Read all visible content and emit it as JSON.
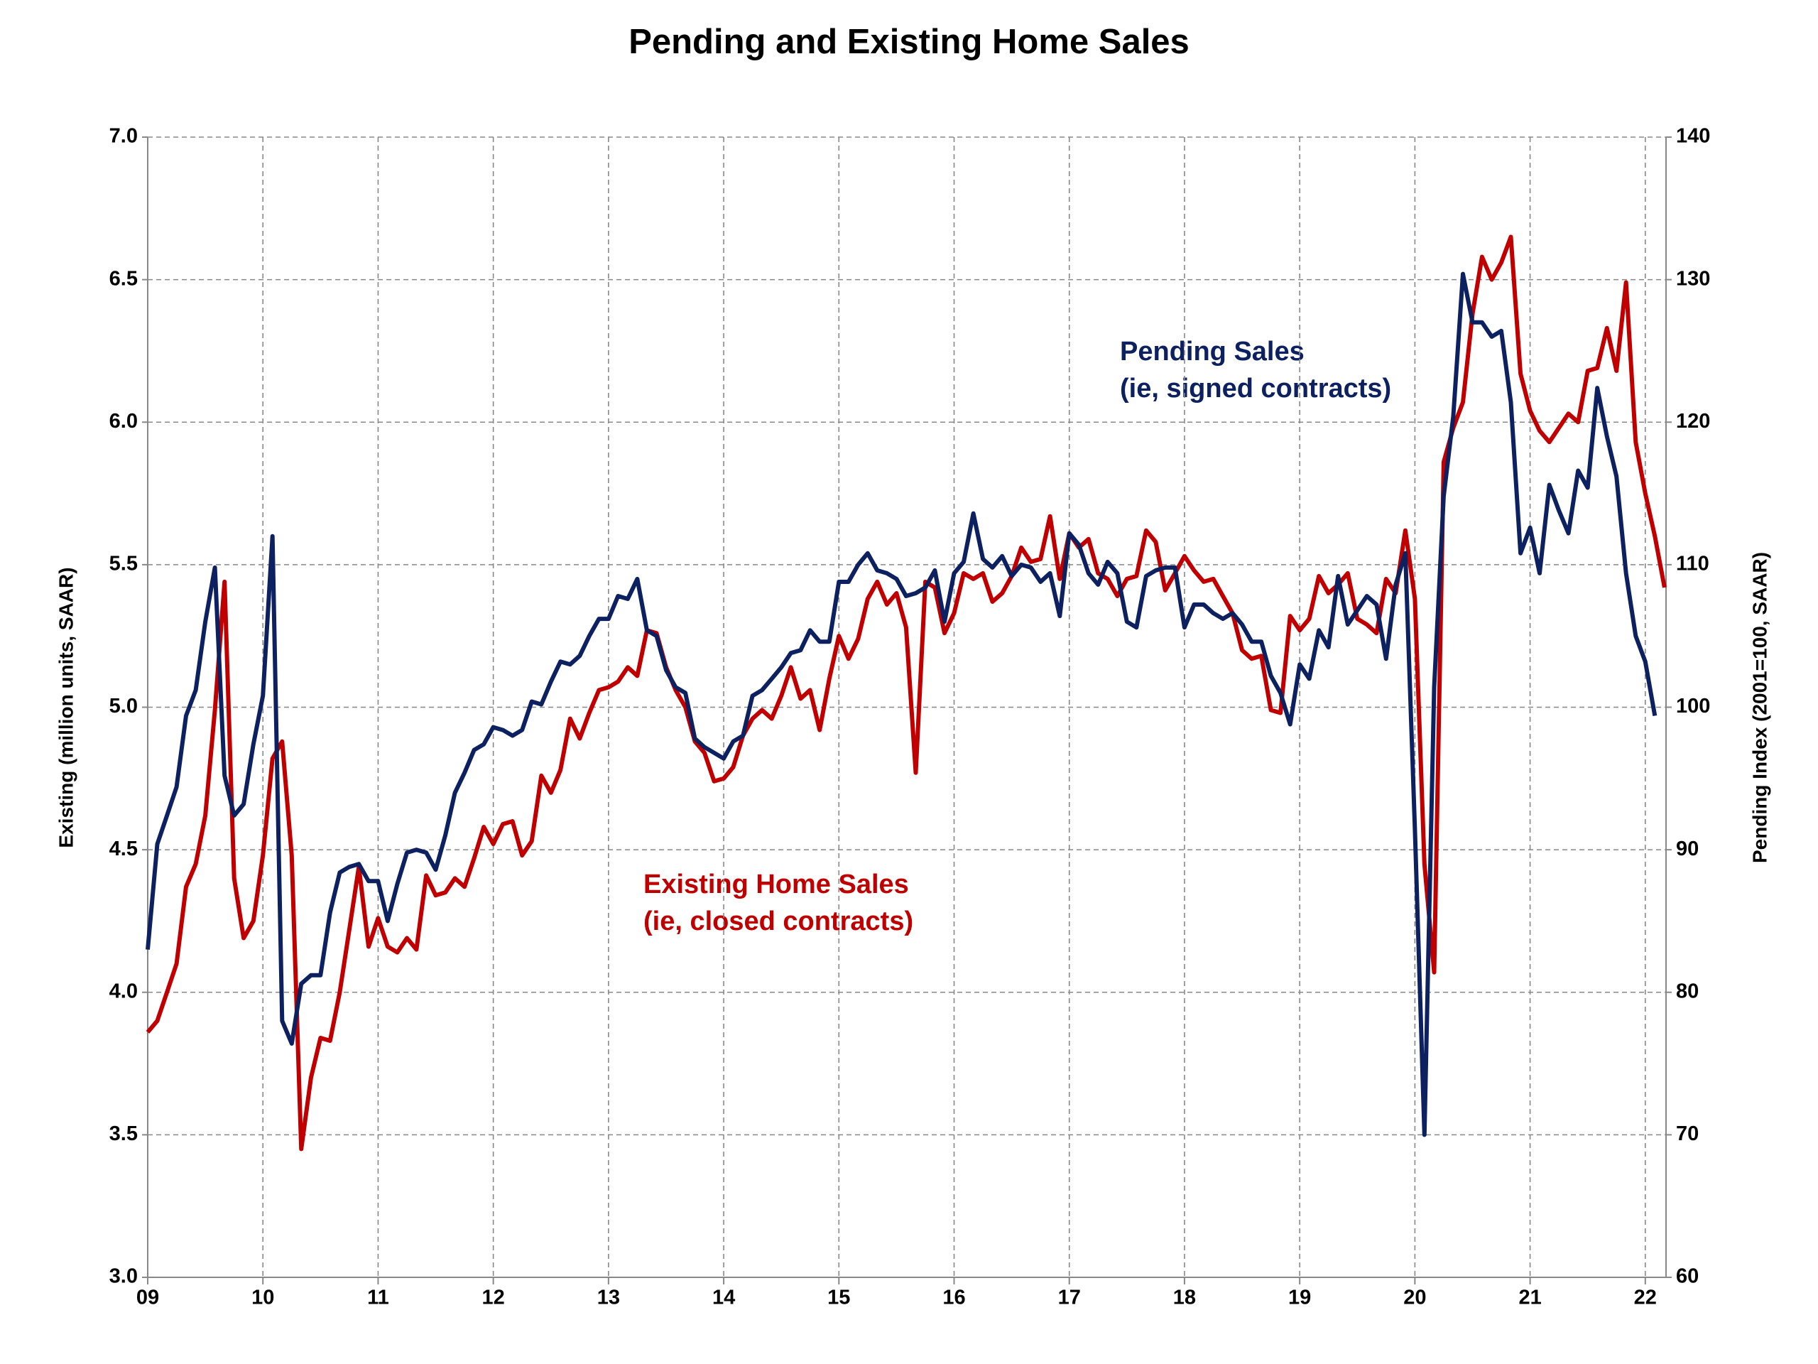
{
  "chart_data": {
    "type": "line",
    "title": "Pending and Existing Home Sales",
    "y_label": "Existing (million units, SAAR)",
    "y2_label": "Pending Index (2001=100, SAAR)",
    "annotations": [
      "Pending Sales",
      "(ie, signed contracts)",
      "Existing Home Sales",
      "(ie, closed contracts)"
    ],
    "grid": true,
    "x": [
      2009,
      2009.083,
      2009.167,
      2009.25,
      2009.333,
      2009.417,
      2009.5,
      2009.583,
      2009.667,
      2009.75,
      2009.833,
      2009.917,
      2010,
      2010.083,
      2010.167,
      2010.25,
      2010.333,
      2010.417,
      2010.5,
      2010.583,
      2010.667,
      2010.75,
      2010.833,
      2010.917,
      2011,
      2011.083,
      2011.167,
      2011.25,
      2011.333,
      2011.417,
      2011.5,
      2011.583,
      2011.667,
      2011.75,
      2011.833,
      2011.917,
      2012,
      2012.083,
      2012.167,
      2012.25,
      2012.333,
      2012.417,
      2012.5,
      2012.583,
      2012.667,
      2012.75,
      2012.833,
      2012.917,
      2013,
      2013.083,
      2013.167,
      2013.25,
      2013.333,
      2013.417,
      2013.5,
      2013.583,
      2013.667,
      2013.75,
      2013.833,
      2013.917,
      2014,
      2014.083,
      2014.167,
      2014.25,
      2014.333,
      2014.417,
      2014.5,
      2014.583,
      2014.667,
      2014.75,
      2014.833,
      2014.917,
      2015,
      2015.083,
      2015.167,
      2015.25,
      2015.333,
      2015.417,
      2015.5,
      2015.583,
      2015.667,
      2015.75,
      2015.833,
      2015.917,
      2016,
      2016.083,
      2016.167,
      2016.25,
      2016.333,
      2016.417,
      2016.5,
      2016.583,
      2016.667,
      2016.75,
      2016.833,
      2016.917,
      2017,
      2017.083,
      2017.167,
      2017.25,
      2017.333,
      2017.417,
      2017.5,
      2017.583,
      2017.667,
      2017.75,
      2017.833,
      2017.917,
      2018,
      2018.083,
      2018.167,
      2018.25,
      2018.333,
      2018.417,
      2018.5,
      2018.583,
      2018.667,
      2018.75,
      2018.833,
      2018.917,
      2019,
      2019.083,
      2019.167,
      2019.25,
      2019.333,
      2019.417,
      2019.5,
      2019.583,
      2019.667,
      2019.75,
      2019.833,
      2019.917,
      2020,
      2020.083,
      2020.167,
      2020.25,
      2020.333,
      2020.417,
      2020.5,
      2020.583,
      2020.667,
      2020.75,
      2020.833,
      2020.917,
      2021,
      2021.083,
      2021.167,
      2021.25,
      2021.333,
      2021.417,
      2021.5,
      2021.583,
      2021.667,
      2021.75,
      2021.833,
      2021.917,
      2022,
      2022.083,
      2022.167
    ],
    "series": [
      {
        "name": "Existing Home Sales",
        "color": "#c00000",
        "values": [
          3.86,
          3.9,
          4.0,
          4.1,
          4.37,
          4.45,
          4.62,
          4.99,
          5.44,
          4.4,
          4.19,
          4.25,
          4.48,
          4.82,
          4.88,
          4.48,
          3.45,
          3.7,
          3.84,
          3.83,
          4.0,
          4.22,
          4.44,
          4.16,
          4.26,
          4.16,
          4.14,
          4.19,
          4.15,
          4.41,
          4.34,
          4.35,
          4.4,
          4.37,
          4.47,
          4.58,
          4.52,
          4.59,
          4.6,
          4.48,
          4.53,
          4.76,
          4.7,
          4.78,
          4.96,
          4.89,
          4.98,
          5.06,
          5.07,
          5.09,
          5.14,
          5.11,
          5.27,
          5.26,
          5.14,
          5.06,
          5.0,
          4.88,
          4.84,
          4.74,
          4.75,
          4.79,
          4.9,
          4.96,
          4.99,
          4.96,
          5.04,
          5.14,
          5.03,
          5.06,
          4.92,
          5.1,
          5.25,
          5.17,
          5.24,
          5.38,
          5.44,
          5.36,
          5.4,
          5.28,
          4.77,
          5.44,
          5.42,
          5.26,
          5.33,
          5.47,
          5.45,
          5.47,
          5.37,
          5.4,
          5.46,
          5.56,
          5.51,
          5.52,
          5.67,
          5.45,
          5.61,
          5.56,
          5.59,
          5.47,
          5.45,
          5.39,
          5.45,
          5.46,
          5.62,
          5.58,
          5.41,
          5.47,
          5.53,
          5.48,
          5.44,
          5.45,
          5.39,
          5.33,
          5.2,
          5.17,
          5.18,
          4.99,
          4.98,
          5.32,
          5.27,
          5.31,
          5.46,
          5.4,
          5.43,
          5.47,
          5.31,
          5.29,
          5.26,
          5.45,
          5.4,
          5.62,
          5.38,
          4.45,
          4.07,
          5.86,
          5.98,
          6.07,
          6.38,
          6.58,
          6.5,
          6.56,
          6.65,
          6.17,
          6.04,
          5.97,
          5.93,
          5.98,
          6.03,
          6.0,
          6.18,
          6.19,
          6.33,
          6.18,
          6.49,
          5.93,
          5.75,
          5.6,
          5.42
        ]
      },
      {
        "name": "Pending Sales",
        "color": "#0d2160",
        "axis": "y2",
        "values": [
          83,
          90.4,
          92.4,
          94.4,
          99.4,
          101.2,
          106,
          109.8,
          95.2,
          92.4,
          93.2,
          97.4,
          100.8,
          112,
          78,
          76.4,
          80.6,
          81.2,
          81.2,
          85.6,
          88.4,
          88.8,
          89,
          87.8,
          87.8,
          85,
          87.6,
          89.8,
          90,
          89.8,
          88.6,
          91,
          94,
          95.4,
          97,
          97.4,
          98.6,
          98.4,
          98,
          98.4,
          100.4,
          100.2,
          101.8,
          103.2,
          103,
          103.6,
          105,
          106.2,
          106.2,
          107.8,
          107.6,
          109,
          105.4,
          105,
          102.6,
          101.4,
          101,
          97.8,
          97.2,
          96.8,
          96.4,
          97.6,
          98,
          100.8,
          101.2,
          102,
          102.8,
          103.8,
          104,
          105.4,
          104.6,
          104.6,
          108.8,
          108.8,
          110,
          110.8,
          109.6,
          109.4,
          109,
          107.8,
          108,
          108.4,
          109.6,
          106,
          109.4,
          110.2,
          113.6,
          110.4,
          109.8,
          110.6,
          109.2,
          110,
          109.8,
          108.8,
          109.4,
          106.4,
          112.2,
          111.4,
          109.4,
          108.6,
          110.2,
          109.4,
          106,
          105.6,
          109.2,
          109.6,
          109.8,
          109.8,
          105.6,
          107.2,
          107.2,
          106.6,
          106.2,
          106.6,
          105.8,
          104.6,
          104.6,
          102.2,
          101,
          98.8,
          103,
          102,
          105.4,
          104.2,
          109.2,
          105.8,
          106.8,
          107.8,
          107.2,
          103.4,
          108.6,
          110.8,
          91.4,
          70,
          101.4,
          114.8,
          120.4,
          130.4,
          127,
          127,
          126,
          126.4,
          121.4,
          110.8,
          112.6,
          109.4,
          115.6,
          113.8,
          112.2,
          116.6,
          115.4,
          122.4,
          119,
          116.2,
          109.4,
          105,
          103.2,
          99.4,
          null
        ]
      }
    ],
    "xlim": [
      2009,
      2022.18
    ],
    "xticks": [
      {
        "value": 2009,
        "label": "09"
      },
      {
        "value": 2010,
        "label": "10"
      },
      {
        "value": 2011,
        "label": "11"
      },
      {
        "value": 2012,
        "label": "12"
      },
      {
        "value": 2013,
        "label": "13"
      },
      {
        "value": 2014,
        "label": "14"
      },
      {
        "value": 2015,
        "label": "15"
      },
      {
        "value": 2016,
        "label": "16"
      },
      {
        "value": 2017,
        "label": "17"
      },
      {
        "value": 2018,
        "label": "18"
      },
      {
        "value": 2019,
        "label": "19"
      },
      {
        "value": 2020,
        "label": "20"
      },
      {
        "value": 2021,
        "label": "21"
      },
      {
        "value": 2022,
        "label": "22"
      }
    ],
    "ylim": [
      3,
      7
    ],
    "yticks": [
      {
        "value": 3,
        "label": "3.0"
      },
      {
        "value": 3.5,
        "label": "3.5"
      },
      {
        "value": 4,
        "label": "4.0"
      },
      {
        "value": 4.5,
        "label": "4.5"
      },
      {
        "value": 5,
        "label": "5.0"
      },
      {
        "value": 5.5,
        "label": "5.5"
      },
      {
        "value": 6,
        "label": "6.0"
      },
      {
        "value": 6.5,
        "label": "6.5"
      },
      {
        "value": 7,
        "label": "7.0"
      }
    ],
    "y2lim": [
      60,
      140
    ],
    "y2ticks": [
      60,
      70,
      80,
      90,
      100,
      110,
      120,
      130,
      140
    ]
  }
}
